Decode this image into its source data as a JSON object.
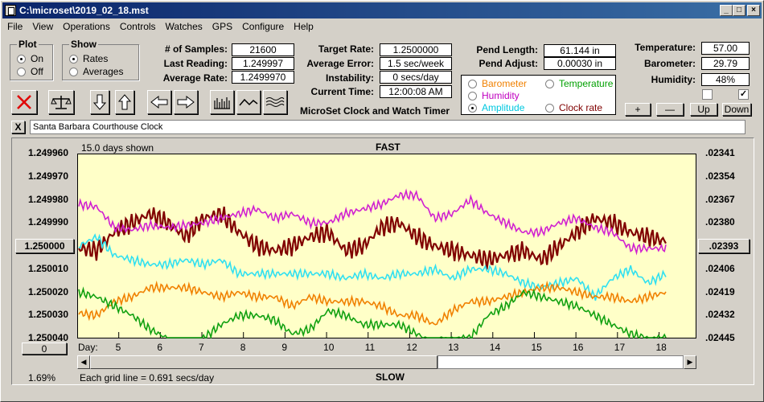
{
  "window": {
    "title": "C:\\microset\\2019_02_18.mst"
  },
  "menu": [
    "File",
    "View",
    "Operations",
    "Controls",
    "Watches",
    "GPS",
    "Configure",
    "Help"
  ],
  "plot_group": {
    "title": "Plot",
    "options": [
      "On",
      "Off"
    ],
    "selected": "On"
  },
  "show_group": {
    "title": "Show",
    "options": [
      "Rates",
      "Averages"
    ],
    "selected": "Rates"
  },
  "stats": {
    "samples_label": "# of Samples:",
    "samples": "21600",
    "last_label": "Last Reading:",
    "last": "1.249997",
    "avg_label": "Average Rate:",
    "avg": "1.2499970"
  },
  "target": {
    "target_label": "Target Rate:",
    "target": "1.2500000",
    "error_label": "Average Error:",
    "error": "1.5 sec/week",
    "instability_label": "Instability:",
    "instability": "0 secs/day",
    "time_label": "Current Time:",
    "time": "12:00:08 AM",
    "app_name": "MicroSet Clock and Watch Timer"
  },
  "pendulum": {
    "length_label": "Pend Length:",
    "length": "61.144 in",
    "adjust_label": "Pend Adjust:",
    "adjust": "0.00030 in"
  },
  "sensor_select": [
    {
      "label": "Barometer",
      "color": "#f08000",
      "selected": false
    },
    {
      "label": "Temperature",
      "color": "#00a000",
      "selected": false
    },
    {
      "label": "Humidity",
      "color": "#c000c0",
      "selected": false
    },
    {
      "label": "Amplitude",
      "color": "#00c8e0",
      "selected": true
    },
    {
      "label": "Clock rate",
      "color": "#800000",
      "selected": false
    }
  ],
  "env": {
    "temp_label": "Temperature:",
    "temp": "57.00",
    "baro_label": "Barometer:",
    "baro": "29.79",
    "hum_label": "Humidity:",
    "hum": "48%",
    "check1": false,
    "check2": true
  },
  "adjust_buttons": [
    "+",
    "—",
    "Up",
    "Down"
  ],
  "clock_name": "Santa Barbara Courthouse Clock",
  "close_x": "X",
  "graph": {
    "days_shown": "15.0 days shown",
    "top_label": "FAST",
    "bottom_label": "SLOW",
    "grid_note": "Each grid line = 0.691 secs/day",
    "day_prefix": "Day:",
    "percent": "1.69%",
    "zero_button": "0",
    "center_button_left": "1.250000",
    "center_button_right": ".02393",
    "bg_color": "#ffffc8"
  },
  "chart_data": {
    "type": "line",
    "left_axis_ticks": [
      "1.249960",
      "1.249970",
      "1.249980",
      "1.249990",
      "1.250000",
      "1.250010",
      "1.250020",
      "1.250030",
      "1.250040"
    ],
    "right_axis_ticks": [
      ".02341",
      ".02354",
      ".02367",
      ".02380",
      ".02393",
      ".02406",
      ".02419",
      ".02432",
      ".02445"
    ],
    "x_ticks": [
      "5",
      "6",
      "7",
      "8",
      "9",
      "10",
      "11",
      "12",
      "13",
      "14",
      "15",
      "16",
      "17",
      "18"
    ],
    "x_range": [
      4,
      18.9
    ],
    "series": [
      {
        "color": "#800000",
        "values": [
          1.250001,
          1.250002,
          1.249994,
          1.24999,
          1.249986,
          1.24999,
          1.249996,
          1.249988,
          1.249986,
          1.249994,
          1.25,
          1.250002,
          1.25,
          1.249996,
          1.249994,
          1.250002,
          1.25,
          1.249992,
          1.24999,
          1.249996,
          1.25,
          1.250002,
          1.250004,
          1.250006,
          1.250004,
          1.250002,
          1.250006,
          1.25,
          1.249994,
          1.249988,
          1.24999,
          1.249994,
          1.249996,
          1.249998
        ]
      },
      {
        "color": "#d020d0",
        "values": [
          1.249982,
          1.249983,
          1.249992,
          1.249993,
          1.249991,
          1.249992,
          1.249991,
          1.24999,
          1.249988,
          1.249986,
          1.249984,
          1.249988,
          1.249986,
          1.24999,
          1.24999,
          1.249986,
          1.249984,
          1.249982,
          1.249978,
          1.249978,
          1.249988,
          1.249986,
          1.24998,
          1.249986,
          1.24999,
          1.249994,
          1.249994,
          1.24999,
          1.249988,
          1.249992,
          1.249994,
          1.250001,
          1.250001,
          1.250001
        ]
      },
      {
        "color": "#30e0f0",
        "values": [
          1.25,
          1.249996,
          1.250004,
          1.250006,
          1.250008,
          1.250008,
          1.250006,
          1.250008,
          1.250006,
          1.250012,
          1.250012,
          1.250012,
          1.250012,
          1.250012,
          1.250012,
          1.250014,
          1.250012,
          1.250014,
          1.250012,
          1.250012,
          1.25001,
          1.250014,
          1.25001,
          1.25001,
          1.250012,
          1.250016,
          1.250018,
          1.250016,
          1.250014,
          1.250022,
          1.250014,
          1.25001,
          1.250016,
          1.250012
        ]
      },
      {
        "color": "#f08000",
        "values": [
          1.250029,
          1.25003,
          1.250024,
          1.250022,
          1.250018,
          1.250018,
          1.250018,
          1.25002,
          1.250022,
          1.25002,
          1.250022,
          1.250022,
          1.250026,
          1.250022,
          1.250024,
          1.250024,
          1.250024,
          1.250026,
          1.25003,
          1.25003,
          1.250034,
          1.250028,
          1.250024,
          1.250024,
          1.250022,
          1.25002,
          1.250018,
          1.250018,
          1.25002,
          1.250022,
          1.250022,
          1.250024,
          1.250022,
          1.25002
        ]
      },
      {
        "color": "#10a010",
        "values": [
          1.25002,
          1.250022,
          1.250026,
          1.25003,
          1.250036,
          1.25004,
          1.250044,
          1.25004,
          1.250034,
          1.25003,
          1.25003,
          1.250032,
          1.250038,
          1.250036,
          1.250028,
          1.25003,
          1.250034,
          1.250034,
          1.250034,
          1.250038,
          1.250042,
          1.25004,
          1.25004,
          1.25003,
          1.250026,
          1.25002,
          1.250022,
          1.250024,
          1.250026,
          1.25003,
          1.250034,
          1.250038,
          1.25004,
          1.25004
        ]
      }
    ]
  }
}
